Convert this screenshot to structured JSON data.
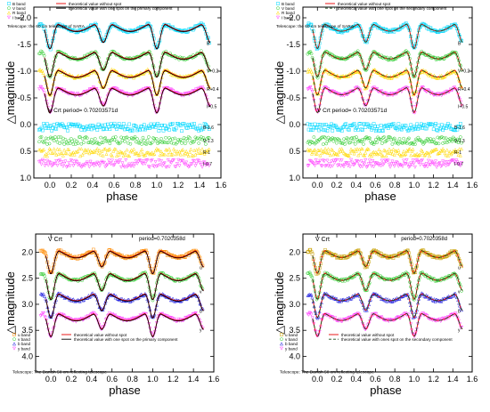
{
  "chart_data": [
    {
      "type": "scatter",
      "title": "",
      "xlabel": "phase",
      "ylabel": "△magnitude",
      "xlim": [
        -0.15,
        1.6
      ],
      "ylim": [
        -2.2,
        1.0
      ],
      "y_inverted": true,
      "xticks": [
        "0.0",
        "0.2",
        "0.4",
        "0.6",
        "0.8",
        "1.0",
        "1.2",
        "1.4",
        "1.6"
      ],
      "yticks": [
        "-2.0",
        "-1.5",
        "-1.0",
        "-0.5",
        "0.0",
        "0.5",
        "1.0"
      ],
      "legend": [
        "B band",
        "V band",
        "R band",
        "I band",
        "theoretical value without spot",
        "theoretical value with one spot on the primary component"
      ],
      "model_style": "solid",
      "telescope": "Telescope: the 60 cm telescope of SARA",
      "period_label": "V Crt    period= 0.70203571d",
      "legend_position": "top-left",
      "series": [
        {
          "name": "B band",
          "curve_label": "B",
          "resid_label": "B-1.6",
          "color": "#00d8ff",
          "marker": "square",
          "offset": -1.92,
          "primary_depth": 0.52,
          "secondary_depth": 0.4,
          "amp": 0.17,
          "resid_offset": 0.05
        },
        {
          "name": "V band",
          "curve_label": "V+0.2",
          "color": "#2ecc2e",
          "marker": "circle",
          "offset": -1.4,
          "primary_depth": 0.53,
          "secondary_depth": 0.4,
          "amp": 0.17,
          "resid_offset": 0.3,
          "resid_label": "V-1.3"
        },
        {
          "name": "R band",
          "curve_label": "R+0.4",
          "color": "#ffd800",
          "marker": "triangle",
          "offset": -1.06,
          "primary_depth": 0.53,
          "secondary_depth": 0.4,
          "amp": 0.17,
          "resid_offset": 0.52,
          "resid_label": "R-1"
        },
        {
          "name": "I band",
          "curve_label": "I+0.5",
          "color": "#ff40ff",
          "marker": "triangle-down",
          "offset": -0.73,
          "primary_depth": 0.53,
          "secondary_depth": 0.4,
          "amp": 0.17,
          "resid_offset": 0.73,
          "resid_label": "I-0.7"
        }
      ]
    },
    {
      "type": "scatter",
      "title": "",
      "xlabel": "phase",
      "ylabel": "△magnitude",
      "xlim": [
        -0.15,
        1.6
      ],
      "ylim": [
        -2.2,
        1.0
      ],
      "y_inverted": true,
      "xticks": [
        "0.0",
        "0.2",
        "0.4",
        "0.6",
        "0.8",
        "1.0",
        "1.2",
        "1.4",
        "1.6"
      ],
      "yticks": [
        "-2.0",
        "-1.5",
        "-1.0",
        "-0.5",
        "0.0",
        "0.5",
        "1.0"
      ],
      "legend": [
        "B band",
        "V band",
        "R band",
        "I band",
        "theoretical value without spot",
        "theoretical value with one spot on the secondary  component"
      ],
      "model_style": "dashed",
      "telescope": "Telescope: the 60 cm telescope of SARA",
      "period_label": "V Crt    period= 0.70203571d",
      "legend_position": "top-left",
      "series": [
        {
          "name": "B band",
          "curve_label": "B",
          "resid_label": "B-1.6",
          "color": "#00d8ff",
          "marker": "square",
          "offset": -1.92,
          "primary_depth": 0.52,
          "secondary_depth": 0.4,
          "amp": 0.17,
          "resid_offset": 0.05
        },
        {
          "name": "V band",
          "curve_label": "V+0.2",
          "color": "#2ecc2e",
          "marker": "circle",
          "offset": -1.4,
          "primary_depth": 0.53,
          "secondary_depth": 0.4,
          "amp": 0.17,
          "resid_offset": 0.3,
          "resid_label": "V-1.3"
        },
        {
          "name": "R band",
          "curve_label": "R+0.4",
          "color": "#ffd800",
          "marker": "triangle",
          "offset": -1.06,
          "primary_depth": 0.53,
          "secondary_depth": 0.4,
          "amp": 0.17,
          "resid_offset": 0.52,
          "resid_label": "R-1"
        },
        {
          "name": "I band",
          "curve_label": "I+0.5",
          "color": "#ff40ff",
          "marker": "triangle-down",
          "offset": -0.73,
          "primary_depth": 0.53,
          "secondary_depth": 0.4,
          "amp": 0.17,
          "resid_offset": 0.73,
          "resid_label": "I-0.7"
        }
      ]
    },
    {
      "type": "scatter",
      "title": "",
      "xlabel": "phase",
      "ylabel": "△magnitude",
      "xlim": [
        -0.15,
        1.6
      ],
      "ylim": [
        1.65,
        4.3
      ],
      "y_inverted": true,
      "xticks": [
        "0.0",
        "0.2",
        "0.4",
        "0.6",
        "0.8",
        "1.0",
        "1.2",
        "1.4",
        "1.6"
      ],
      "yticks": [
        "2.0",
        "2.5",
        "3.0",
        "3.5",
        "4.0"
      ],
      "legend": [
        "u band",
        "v band",
        "b band",
        "y band",
        "theoretical value without spot",
        "theoretical value with one spot on the primary  component"
      ],
      "model_style": "solid",
      "telescope": "Telescope: The Danish 50 cm reflecting telescope",
      "star_label": "V Crt",
      "period_label": "period=0.7020358d",
      "legend_position": "bottom-left",
      "series": [
        {
          "name": "u band",
          "curve_label": "u",
          "color": "#ff8a00",
          "marker": "square",
          "offset": 1.93,
          "primary_depth": 0.5,
          "secondary_depth": 0.37,
          "amp": 0.17
        },
        {
          "name": "v band",
          "curve_label": "v",
          "color": "#2ecc2e",
          "marker": "circle",
          "offset": 2.36,
          "primary_depth": 0.57,
          "secondary_depth": 0.4,
          "amp": 0.18
        },
        {
          "name": "b band",
          "curve_label": "b",
          "color": "#2020e0",
          "marker": "triangle",
          "offset": 2.76,
          "primary_depth": 0.52,
          "secondary_depth": 0.38,
          "amp": 0.17
        },
        {
          "name": "y band",
          "curve_label": "y",
          "color": "#ff40ff",
          "marker": "triangle-down",
          "offset": 3.14,
          "primary_depth": 0.5,
          "secondary_depth": 0.36,
          "amp": 0.17
        }
      ]
    },
    {
      "type": "scatter",
      "title": "",
      "xlabel": "phase",
      "ylabel": "△magnitude",
      "xlim": [
        -0.15,
        1.6
      ],
      "ylim": [
        1.65,
        4.3
      ],
      "y_inverted": true,
      "xticks": [
        "0.0",
        "0.2",
        "0.4",
        "0.6",
        "0.8",
        "1.0",
        "1.2",
        "1.4",
        "1.6"
      ],
      "yticks": [
        "2.0",
        "2.5",
        "3.0",
        "3.5",
        "4.0"
      ],
      "legend": [
        "u band",
        "v band",
        "b band",
        "y band",
        "theoretical value without spot",
        "theoretical value with ones spot on the secondary component"
      ],
      "model_style": "dashed",
      "telescope": "Telescope: The Danish 50 cm reflecting telescope",
      "star_label": "V Crt",
      "period_label": "period=0.7020358d",
      "legend_position": "bottom-left",
      "series": [
        {
          "name": "u band",
          "curve_label": "u",
          "color": "#c8a000",
          "marker": "square",
          "offset": 1.93,
          "primary_depth": 0.5,
          "secondary_depth": 0.37,
          "amp": 0.17
        },
        {
          "name": "v band",
          "curve_label": "v",
          "color": "#2ecc2e",
          "marker": "circle",
          "offset": 2.36,
          "primary_depth": 0.57,
          "secondary_depth": 0.4,
          "amp": 0.18
        },
        {
          "name": "b band",
          "curve_label": "b",
          "color": "#2020e0",
          "marker": "triangle",
          "offset": 2.76,
          "primary_depth": 0.52,
          "secondary_depth": 0.38,
          "amp": 0.17
        },
        {
          "name": "y band",
          "curve_label": "y",
          "color": "#ff40ff",
          "marker": "triangle-down",
          "offset": 3.14,
          "primary_depth": 0.5,
          "secondary_depth": 0.36,
          "amp": 0.17
        }
      ]
    }
  ]
}
